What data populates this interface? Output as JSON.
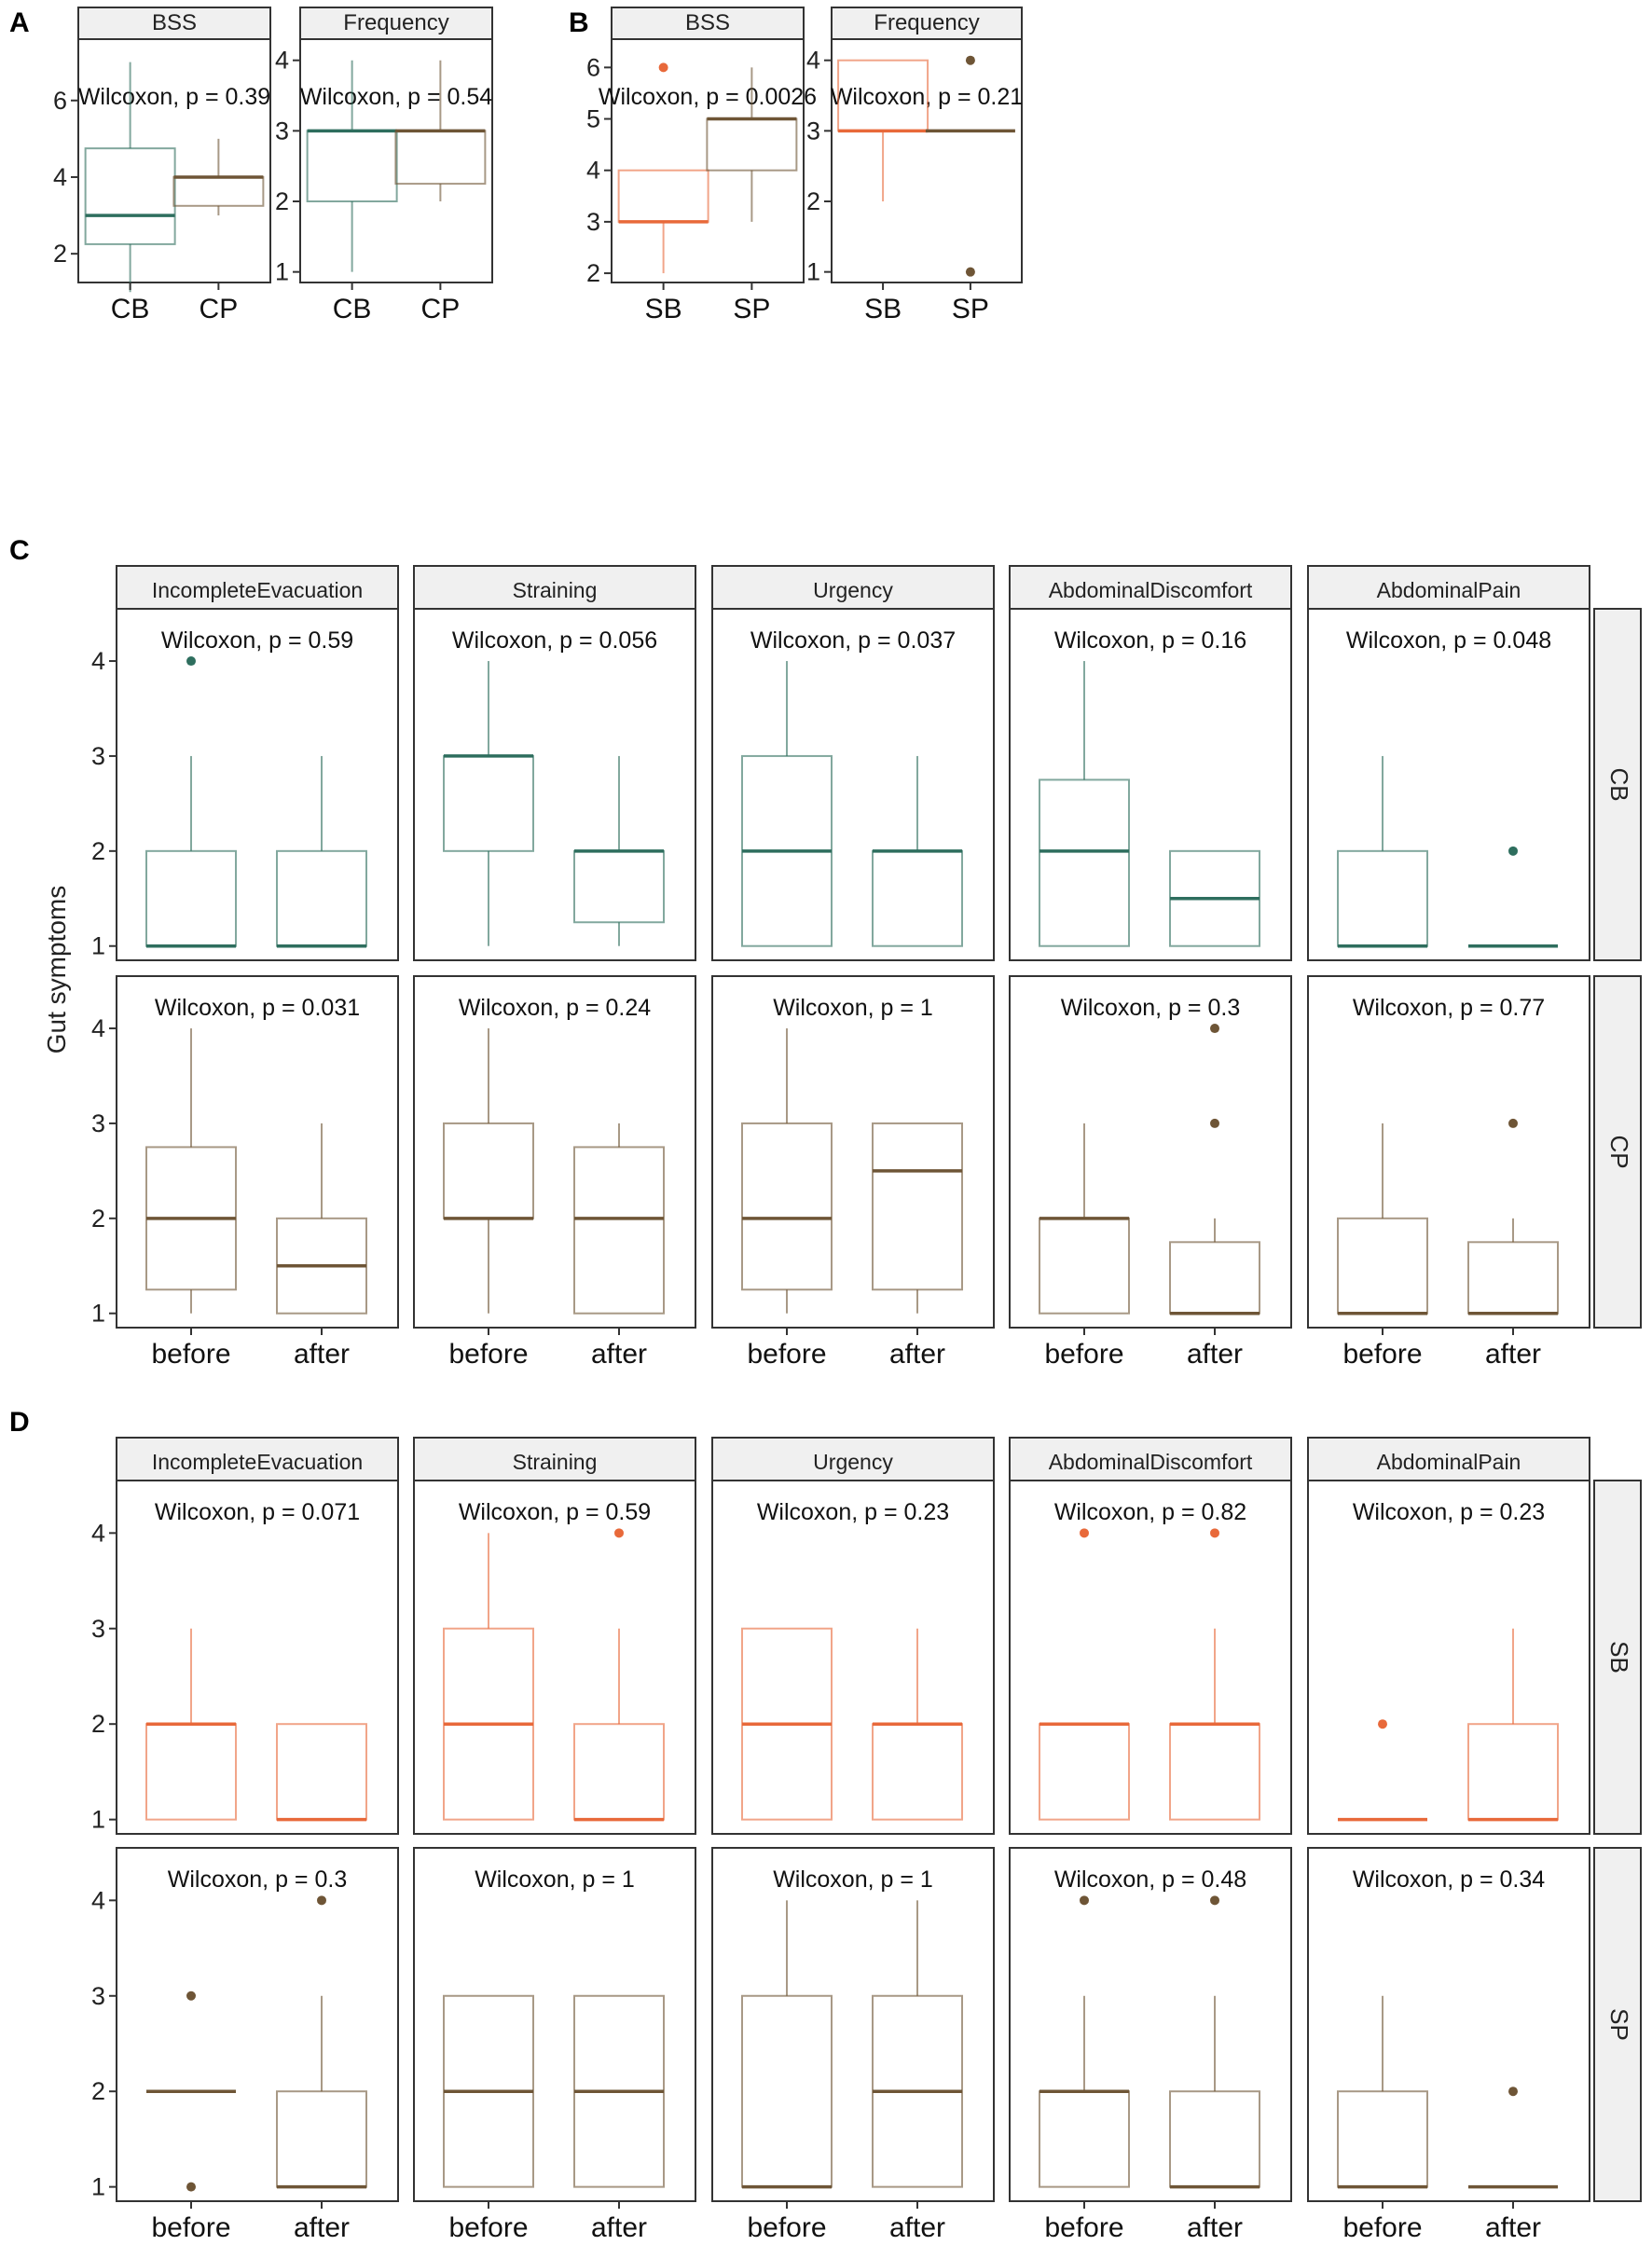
{
  "chart_data": [
    {
      "panel": "A",
      "type": "boxplot",
      "xlabel": "",
      "ylabel": "",
      "facets": [
        {
          "strip": "BSS",
          "annotation": "Wilcoxon, p = 0.39",
          "ylim": [
            1.25,
            7.6
          ],
          "yticks": [
            2,
            4,
            6
          ],
          "categories": [
            "CB",
            "CP"
          ],
          "boxes": [
            {
              "category": "CB",
              "color": "#2e6e5e",
              "q1": 2.25,
              "median": 3,
              "q3": 4.75,
              "whisker_low": 1,
              "whisker_high": 7,
              "outliers": []
            },
            {
              "category": "CP",
              "color": "#6e5536",
              "q1": 3.25,
              "median": 4,
              "q3": 4,
              "whisker_low": 3,
              "whisker_high": 5,
              "outliers": []
            }
          ]
        },
        {
          "strip": "Frequency",
          "annotation": "Wilcoxon, p = 0.54",
          "ylim": [
            0.85,
            4.3
          ],
          "yticks": [
            1,
            2,
            3,
            4
          ],
          "categories": [
            "CB",
            "CP"
          ],
          "boxes": [
            {
              "category": "CB",
              "color": "#2e6e5e",
              "q1": 2,
              "median": 3,
              "q3": 3,
              "whisker_low": 1,
              "whisker_high": 4,
              "outliers": []
            },
            {
              "category": "CP",
              "color": "#6e5536",
              "q1": 2.25,
              "median": 3,
              "q3": 3,
              "whisker_low": 2,
              "whisker_high": 4,
              "outliers": []
            }
          ]
        }
      ]
    },
    {
      "panel": "B",
      "type": "boxplot",
      "xlabel": "",
      "ylabel": "",
      "facets": [
        {
          "strip": "BSS",
          "annotation": "Wilcoxon, p = 0.0026",
          "ylim": [
            1.82,
            6.55
          ],
          "yticks": [
            2,
            3,
            4,
            5,
            6
          ],
          "categories": [
            "SB",
            "SP"
          ],
          "boxes": [
            {
              "category": "SB",
              "color": "#e8693a",
              "q1": 3,
              "median": 3,
              "q3": 4,
              "whisker_low": 2,
              "whisker_high": 4,
              "outliers": [
                6
              ]
            },
            {
              "category": "SP",
              "color": "#6e5536",
              "q1": 4,
              "median": 5,
              "q3": 5,
              "whisker_low": 3,
              "whisker_high": 6,
              "outliers": []
            }
          ]
        },
        {
          "strip": "Frequency",
          "annotation": "Wilcoxon, p = 0.21",
          "ylim": [
            0.85,
            4.3
          ],
          "yticks": [
            1,
            2,
            3,
            4
          ],
          "categories": [
            "SB",
            "SP"
          ],
          "boxes": [
            {
              "category": "SB",
              "color": "#e8693a",
              "q1": 3,
              "median": 3,
              "q3": 4,
              "whisker_low": 2,
              "whisker_high": 4,
              "outliers": []
            },
            {
              "category": "SP",
              "color": "#6e5536",
              "q1": 3,
              "median": 3,
              "q3": 3,
              "whisker_low": 3,
              "whisker_high": 3,
              "outliers": [
                1,
                4
              ]
            }
          ]
        }
      ]
    },
    {
      "panel": "C",
      "type": "boxplot",
      "ylabel": "Gut symptoms",
      "ylim": [
        0.85,
        4.55
      ],
      "yticks": [
        1,
        2,
        3,
        4
      ],
      "categories": [
        "before",
        "after"
      ],
      "columns": [
        "IncompleteEvacuation",
        "Straining",
        "Urgency",
        "AbdominalDiscomfort",
        "AbdominalPain"
      ],
      "rows": [
        {
          "strip": "CB",
          "color": "#2e6e5e",
          "cells": [
            {
              "annotation": "Wilcoxon, p = 0.59",
              "boxes": [
                {
                  "q1": 1,
                  "median": 1,
                  "q3": 2,
                  "whisker_low": 1,
                  "whisker_high": 3,
                  "outliers": [
                    4
                  ]
                },
                {
                  "q1": 1,
                  "median": 1,
                  "q3": 2,
                  "whisker_low": 1,
                  "whisker_high": 3,
                  "outliers": []
                }
              ]
            },
            {
              "annotation": "Wilcoxon, p = 0.056",
              "boxes": [
                {
                  "q1": 2,
                  "median": 3,
                  "q3": 3,
                  "whisker_low": 1,
                  "whisker_high": 4,
                  "outliers": []
                },
                {
                  "q1": 1.25,
                  "median": 2,
                  "q3": 2,
                  "whisker_low": 1,
                  "whisker_high": 3,
                  "outliers": []
                }
              ]
            },
            {
              "annotation": "Wilcoxon, p = 0.037",
              "boxes": [
                {
                  "q1": 1,
                  "median": 2,
                  "q3": 3,
                  "whisker_low": 1,
                  "whisker_high": 4,
                  "outliers": []
                },
                {
                  "q1": 1,
                  "median": 2,
                  "q3": 2,
                  "whisker_low": 1,
                  "whisker_high": 3,
                  "outliers": []
                }
              ]
            },
            {
              "annotation": "Wilcoxon, p = 0.16",
              "boxes": [
                {
                  "q1": 1,
                  "median": 2,
                  "q3": 2.75,
                  "whisker_low": 1,
                  "whisker_high": 4,
                  "outliers": []
                },
                {
                  "q1": 1,
                  "median": 1.5,
                  "q3": 2,
                  "whisker_low": 1,
                  "whisker_high": 2,
                  "outliers": []
                }
              ]
            },
            {
              "annotation": "Wilcoxon, p = 0.048",
              "boxes": [
                {
                  "q1": 1,
                  "median": 1,
                  "q3": 2,
                  "whisker_low": 1,
                  "whisker_high": 3,
                  "outliers": []
                },
                {
                  "q1": 1,
                  "median": 1,
                  "q3": 1,
                  "whisker_low": 1,
                  "whisker_high": 1,
                  "outliers": [
                    2
                  ]
                }
              ]
            }
          ]
        },
        {
          "strip": "CP",
          "color": "#6e5536",
          "cells": [
            {
              "annotation": "Wilcoxon, p = 0.031",
              "boxes": [
                {
                  "q1": 1.25,
                  "median": 2,
                  "q3": 2.75,
                  "whisker_low": 1,
                  "whisker_high": 4,
                  "outliers": []
                },
                {
                  "q1": 1,
                  "median": 1.5,
                  "q3": 2,
                  "whisker_low": 1,
                  "whisker_high": 3,
                  "outliers": []
                }
              ]
            },
            {
              "annotation": "Wilcoxon, p = 0.24",
              "boxes": [
                {
                  "q1": 2,
                  "median": 2,
                  "q3": 3,
                  "whisker_low": 1,
                  "whisker_high": 4,
                  "outliers": []
                },
                {
                  "q1": 1,
                  "median": 2,
                  "q3": 2.75,
                  "whisker_low": 1,
                  "whisker_high": 3,
                  "outliers": []
                }
              ]
            },
            {
              "annotation": "Wilcoxon, p = 1",
              "boxes": [
                {
                  "q1": 1.25,
                  "median": 2,
                  "q3": 3,
                  "whisker_low": 1,
                  "whisker_high": 4,
                  "outliers": []
                },
                {
                  "q1": 1.25,
                  "median": 2.5,
                  "q3": 3,
                  "whisker_low": 1,
                  "whisker_high": 3,
                  "outliers": []
                }
              ]
            },
            {
              "annotation": "Wilcoxon, p = 0.3",
              "boxes": [
                {
                  "q1": 1,
                  "median": 2,
                  "q3": 2,
                  "whisker_low": 1,
                  "whisker_high": 3,
                  "outliers": []
                },
                {
                  "q1": 1,
                  "median": 1,
                  "q3": 1.75,
                  "whisker_low": 1,
                  "whisker_high": 2,
                  "outliers": [
                    3,
                    4
                  ]
                }
              ]
            },
            {
              "annotation": "Wilcoxon, p = 0.77",
              "boxes": [
                {
                  "q1": 1,
                  "median": 1,
                  "q3": 2,
                  "whisker_low": 1,
                  "whisker_high": 3,
                  "outliers": []
                },
                {
                  "q1": 1,
                  "median": 1,
                  "q3": 1.75,
                  "whisker_low": 1,
                  "whisker_high": 2,
                  "outliers": [
                    3
                  ]
                }
              ]
            }
          ]
        }
      ]
    },
    {
      "panel": "D",
      "type": "boxplot",
      "ylabel": "",
      "ylim": [
        0.85,
        4.55
      ],
      "yticks": [
        1,
        2,
        3,
        4
      ],
      "categories": [
        "before",
        "after"
      ],
      "columns": [
        "IncompleteEvacuation",
        "Straining",
        "Urgency",
        "AbdominalDiscomfort",
        "AbdominalPain"
      ],
      "rows": [
        {
          "strip": "SB",
          "color": "#e8693a",
          "cells": [
            {
              "annotation": "Wilcoxon, p = 0.071",
              "boxes": [
                {
                  "q1": 1,
                  "median": 2,
                  "q3": 2,
                  "whisker_low": 1,
                  "whisker_high": 3,
                  "outliers": []
                },
                {
                  "q1": 1,
                  "median": 1,
                  "q3": 2,
                  "whisker_low": 1,
                  "whisker_high": 2,
                  "outliers": []
                }
              ]
            },
            {
              "annotation": "Wilcoxon, p = 0.59",
              "boxes": [
                {
                  "q1": 1,
                  "median": 2,
                  "q3": 3,
                  "whisker_low": 1,
                  "whisker_high": 4,
                  "outliers": []
                },
                {
                  "q1": 1,
                  "median": 1,
                  "q3": 2,
                  "whisker_low": 1,
                  "whisker_high": 3,
                  "outliers": [
                    4
                  ]
                }
              ]
            },
            {
              "annotation": "Wilcoxon, p = 0.23",
              "boxes": [
                {
                  "q1": 1,
                  "median": 2,
                  "q3": 3,
                  "whisker_low": 1,
                  "whisker_high": 3,
                  "outliers": []
                },
                {
                  "q1": 1,
                  "median": 2,
                  "q3": 2,
                  "whisker_low": 1,
                  "whisker_high": 3,
                  "outliers": []
                }
              ]
            },
            {
              "annotation": "Wilcoxon, p = 0.82",
              "boxes": [
                {
                  "q1": 1,
                  "median": 2,
                  "q3": 2,
                  "whisker_low": 1,
                  "whisker_high": 2,
                  "outliers": [
                    4
                  ]
                },
                {
                  "q1": 1,
                  "median": 2,
                  "q3": 2,
                  "whisker_low": 1,
                  "whisker_high": 3,
                  "outliers": [
                    4
                  ]
                }
              ]
            },
            {
              "annotation": "Wilcoxon, p = 0.23",
              "boxes": [
                {
                  "q1": 1,
                  "median": 1,
                  "q3": 1,
                  "whisker_low": 1,
                  "whisker_high": 1,
                  "outliers": [
                    2
                  ]
                },
                {
                  "q1": 1,
                  "median": 1,
                  "q3": 2,
                  "whisker_low": 1,
                  "whisker_high": 3,
                  "outliers": []
                }
              ]
            }
          ]
        },
        {
          "strip": "SP",
          "color": "#6e5536",
          "cells": [
            {
              "annotation": "Wilcoxon, p = 0.3",
              "boxes": [
                {
                  "q1": 2,
                  "median": 2,
                  "q3": 2,
                  "whisker_low": 2,
                  "whisker_high": 2,
                  "outliers": [
                    1,
                    3
                  ]
                },
                {
                  "q1": 1,
                  "median": 1,
                  "q3": 2,
                  "whisker_low": 1,
                  "whisker_high": 3,
                  "outliers": [
                    4
                  ]
                }
              ]
            },
            {
              "annotation": "Wilcoxon, p = 1",
              "boxes": [
                {
                  "q1": 1,
                  "median": 2,
                  "q3": 3,
                  "whisker_low": 1,
                  "whisker_high": 3,
                  "outliers": []
                },
                {
                  "q1": 1,
                  "median": 2,
                  "q3": 3,
                  "whisker_low": 1,
                  "whisker_high": 3,
                  "outliers": []
                }
              ]
            },
            {
              "annotation": "Wilcoxon, p = 1",
              "boxes": [
                {
                  "q1": 1,
                  "median": 1,
                  "q3": 3,
                  "whisker_low": 1,
                  "whisker_high": 4,
                  "outliers": []
                },
                {
                  "q1": 1,
                  "median": 2,
                  "q3": 3,
                  "whisker_low": 1,
                  "whisker_high": 4,
                  "outliers": []
                }
              ]
            },
            {
              "annotation": "Wilcoxon, p = 0.48",
              "boxes": [
                {
                  "q1": 1,
                  "median": 2,
                  "q3": 2,
                  "whisker_low": 1,
                  "whisker_high": 3,
                  "outliers": [
                    4
                  ]
                },
                {
                  "q1": 1,
                  "median": 1,
                  "q3": 2,
                  "whisker_low": 1,
                  "whisker_high": 3,
                  "outliers": [
                    4
                  ]
                }
              ]
            },
            {
              "annotation": "Wilcoxon, p = 0.34",
              "boxes": [
                {
                  "q1": 1,
                  "median": 1,
                  "q3": 2,
                  "whisker_low": 1,
                  "whisker_high": 3,
                  "outliers": []
                },
                {
                  "q1": 1,
                  "median": 1,
                  "q3": 1,
                  "whisker_low": 1,
                  "whisker_high": 1,
                  "outliers": [
                    2
                  ]
                }
              ]
            }
          ]
        }
      ]
    }
  ]
}
